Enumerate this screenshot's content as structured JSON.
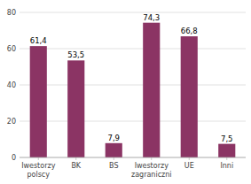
{
  "chart_data": {
    "type": "bar",
    "categories": [
      "Iwestorzy\npolscy",
      "BK",
      "BS",
      "Iwestorzy\nzagraniczni",
      "UE",
      "Inni"
    ],
    "values": [
      61.4,
      53.5,
      7.9,
      74.3,
      66.8,
      7.5
    ],
    "value_labels": [
      "61,4",
      "53,5",
      "7,9",
      "74,3",
      "66,8",
      "7,5"
    ],
    "color": "#8B3464",
    "ylim": [
      0,
      80
    ],
    "yticks": [
      0,
      20,
      40,
      60,
      80
    ],
    "grid": true,
    "data_labels": true
  }
}
